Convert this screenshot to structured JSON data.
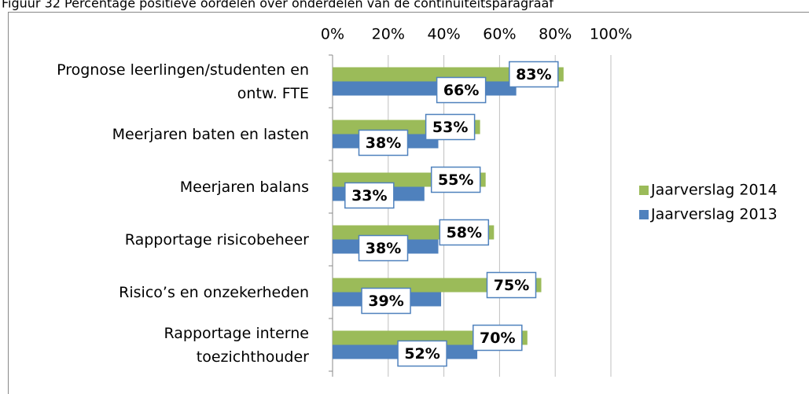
{
  "chart_data": {
    "type": "bar",
    "orientation": "horizontal",
    "title": "Figuur 32 Percentage positieve oordelen over onderdelen van de continuïteitsparagraaf",
    "categories": [
      "Prognose leerlingen/studenten en\nontw. FTE",
      "Meerjaren baten en lasten",
      "Meerjaren balans",
      "Rapportage risicobeheer",
      "Risico’s en onzekerheden",
      "Rapportage interne\ntoezichthouder"
    ],
    "series": [
      {
        "name": "Jaarverslag 2014",
        "color": "#9bbb59",
        "values": [
          83,
          53,
          55,
          58,
          75,
          70
        ],
        "value_labels": [
          "83%",
          "53%",
          "55%",
          "58%",
          "75%",
          "70%"
        ]
      },
      {
        "name": "Jaarverslag 2013",
        "color": "#4f81bd",
        "values": [
          66,
          38,
          33,
          38,
          39,
          52
        ],
        "value_labels": [
          "66%",
          "38%",
          "33%",
          "38%",
          "39%",
          "52%"
        ]
      }
    ],
    "xlim": [
      0,
      100
    ],
    "xticks": [
      {
        "value": 0,
        "label": "0%"
      },
      {
        "value": 20,
        "label": "20%"
      },
      {
        "value": 40,
        "label": "40%"
      },
      {
        "value": 60,
        "label": "60%"
      },
      {
        "value": 80,
        "label": "80%"
      },
      {
        "value": 100,
        "label": "100%"
      }
    ],
    "grid": true,
    "legend": "right"
  }
}
